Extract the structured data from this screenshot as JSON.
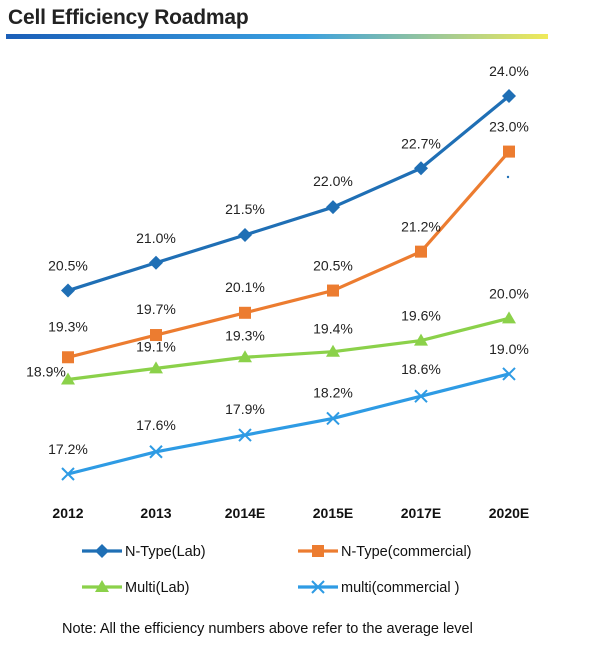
{
  "title": "Cell Efficiency Roadmap",
  "note": "Note: All the efficiency numbers above refer to the average level",
  "chart_data": {
    "type": "line",
    "title": "Cell Efficiency Roadmap",
    "categories": [
      "2012",
      "2013",
      "2014E",
      "2015E",
      "2017E",
      "2020E"
    ],
    "ylim": [
      16.5,
      24.5
    ],
    "grid": false,
    "legend": "bottom",
    "series": [
      {
        "name": "N-Type(Lab)",
        "color": "#1f6fb5",
        "marker": "diamond",
        "values": [
          20.5,
          21.0,
          21.5,
          22.0,
          22.7,
          24.0
        ],
        "labels": [
          "20.5%",
          "21.0%",
          "21.5%",
          "22.0%",
          "22.7%",
          "24.0%"
        ]
      },
      {
        "name": "N-Type(commercial)",
        "color": "#ec7c30",
        "marker": "square",
        "values": [
          19.3,
          19.7,
          20.1,
          20.5,
          21.2,
          23.0
        ],
        "labels": [
          "19.3%",
          "19.7%",
          "20.1%",
          "20.5%",
          "21.2%",
          "23.0%"
        ]
      },
      {
        "name": "Multi(Lab)",
        "color": "#8bd14a",
        "marker": "triangle",
        "values": [
          18.9,
          19.1,
          19.3,
          19.4,
          19.6,
          20.0
        ],
        "labels": [
          "18.9%",
          "19.1%",
          "19.3%",
          "19.4%",
          "19.6%",
          "20.0%"
        ]
      },
      {
        "name": "multi(commercial )",
        "color": "#2e9be4",
        "marker": "x",
        "values": [
          17.2,
          17.6,
          17.9,
          18.2,
          18.6,
          19.0
        ],
        "labels": [
          "17.2%",
          "17.6%",
          "17.9%",
          "18.2%",
          "18.6%",
          "19.0%"
        ]
      }
    ]
  }
}
